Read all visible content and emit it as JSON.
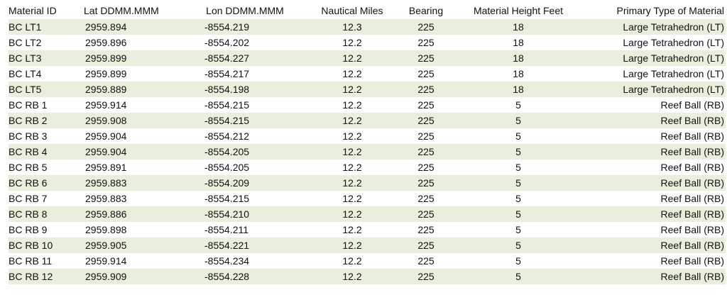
{
  "table": {
    "headers": {
      "material_id": "Material ID",
      "lat": "Lat DDMM.MMM",
      "lon": "Lon DDMM.MMM",
      "nautical_miles": "Nautical Miles",
      "bearing": "Bearing",
      "height": "Material Height Feet",
      "type": "Primary Type of Material"
    },
    "rows": [
      {
        "id": "BC LT1",
        "lat": "2959.894",
        "lon": "-8554.219",
        "nm": "12.3",
        "bearing": "225",
        "height": "18",
        "type": "Large Tetrahedron (LT)"
      },
      {
        "id": "BC LT2",
        "lat": "2959.896",
        "lon": "-8554.202",
        "nm": "12.2",
        "bearing": "225",
        "height": "18",
        "type": "Large Tetrahedron (LT)"
      },
      {
        "id": "BC LT3",
        "lat": "2959.899",
        "lon": "-8554.227",
        "nm": "12.2",
        "bearing": "225",
        "height": "18",
        "type": "Large Tetrahedron (LT)"
      },
      {
        "id": "BC LT4",
        "lat": "2959.899",
        "lon": "-8554.217",
        "nm": "12.2",
        "bearing": "225",
        "height": "18",
        "type": "Large Tetrahedron (LT)"
      },
      {
        "id": "BC LT5",
        "lat": "2959.889",
        "lon": "-8554.198",
        "nm": "12.2",
        "bearing": "225",
        "height": "18",
        "type": "Large Tetrahedron (LT)"
      },
      {
        "id": "BC RB 1",
        "lat": "2959.914",
        "lon": "-8554.215",
        "nm": "12.2",
        "bearing": "225",
        "height": "5",
        "type": "Reef Ball (RB)"
      },
      {
        "id": "BC RB 2",
        "lat": "2959.908",
        "lon": "-8554.215",
        "nm": "12.2",
        "bearing": "225",
        "height": "5",
        "type": "Reef Ball (RB)"
      },
      {
        "id": "BC RB 3",
        "lat": "2959.904",
        "lon": "-8554.212",
        "nm": "12.2",
        "bearing": "225",
        "height": "5",
        "type": "Reef Ball (RB)"
      },
      {
        "id": "BC RB 4",
        "lat": "2959.904",
        "lon": "-8554.205",
        "nm": "12.2",
        "bearing": "225",
        "height": "5",
        "type": "Reef Ball (RB)"
      },
      {
        "id": "BC RB 5",
        "lat": "2959.891",
        "lon": "-8554.205",
        "nm": "12.2",
        "bearing": "225",
        "height": "5",
        "type": "Reef Ball (RB)"
      },
      {
        "id": "BC RB 6",
        "lat": "2959.883",
        "lon": "-8554.209",
        "nm": "12.2",
        "bearing": "225",
        "height": "5",
        "type": "Reef Ball (RB)"
      },
      {
        "id": "BC RB 7",
        "lat": "2959.883",
        "lon": "-8554.215",
        "nm": "12.2",
        "bearing": "225",
        "height": "5",
        "type": "Reef Ball (RB)"
      },
      {
        "id": "BC RB 8",
        "lat": "2959.886",
        "lon": "-8554.210",
        "nm": "12.2",
        "bearing": "225",
        "height": "5",
        "type": "Reef Ball (RB)"
      },
      {
        "id": "BC RB 9",
        "lat": "2959.898",
        "lon": "-8554.211",
        "nm": "12.2",
        "bearing": "225",
        "height": "5",
        "type": "Reef Ball (RB)"
      },
      {
        "id": "BC RB 10",
        "lat": "2959.905",
        "lon": "-8554.221",
        "nm": "12.2",
        "bearing": "225",
        "height": "5",
        "type": "Reef Ball (RB)"
      },
      {
        "id": "BC RB 11",
        "lat": "2959.914",
        "lon": "-8554.234",
        "nm": "12.2",
        "bearing": "225",
        "height": "5",
        "type": "Reef Ball (RB)"
      },
      {
        "id": "BC RB 12",
        "lat": "2959.909",
        "lon": "-8554.228",
        "nm": "12.2",
        "bearing": "225",
        "height": "5",
        "type": "Reef Ball (RB)"
      }
    ]
  },
  "colors": {
    "band_row": "#e8efdc",
    "plain_row": "#ffffff",
    "text": "#111111"
  }
}
